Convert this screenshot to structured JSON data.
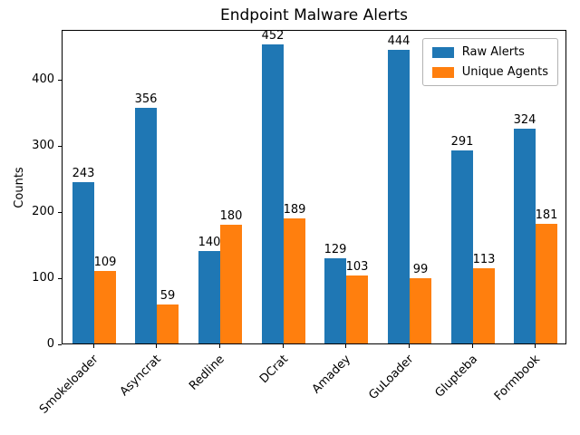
{
  "chart_data": {
    "type": "bar",
    "title": "Endpoint Malware Alerts",
    "xlabel": "",
    "ylabel": "Counts",
    "categories": [
      "Smokeloader",
      "Asyncrat",
      "Redline",
      "DCrat",
      "Amadey",
      "GuLoader",
      "Glupteba",
      "Formbook"
    ],
    "series": [
      {
        "name": "Raw Alerts",
        "color": "#1f77b4",
        "values": [
          243,
          356,
          140,
          452,
          129,
          444,
          291,
          324
        ]
      },
      {
        "name": "Unique Agents",
        "color": "#ff7f0e",
        "values": [
          109,
          59,
          180,
          189,
          103,
          99,
          113,
          181
        ]
      }
    ],
    "ylim": [
      0,
      475
    ],
    "yticks": [
      0,
      100,
      200,
      300,
      400
    ],
    "legend_position": "upper right",
    "grid": false,
    "bar_labels": true
  }
}
